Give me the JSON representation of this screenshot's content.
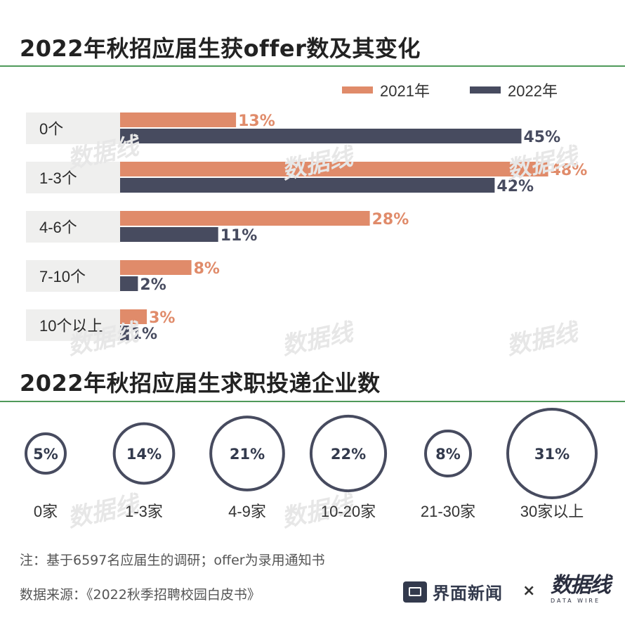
{
  "section1_title": "2022年秋招应届生获offer数及其变化",
  "section2_title": "2022年秋招应届生求职投递企业数",
  "colors": {
    "y2021": "#e08b6a",
    "y2022": "#474b5f",
    "rule": "#4f9a5a",
    "label_bg": "#efefee"
  },
  "chart_data": [
    {
      "type": "bar",
      "categories": [
        "0个",
        "1-3个",
        "4-6个",
        "7-10个",
        "10个以上"
      ],
      "series": [
        {
          "name": "2021年",
          "values": [
            13,
            48,
            28,
            8,
            3
          ],
          "labels": [
            "13%",
            "48%",
            "28%",
            "8%",
            "3%"
          ]
        },
        {
          "name": "2022年",
          "values": [
            45,
            42,
            11,
            2,
            1
          ],
          "labels": [
            "45%",
            "42%",
            "11%",
            "2%",
            "1%"
          ]
        }
      ],
      "legend": "top-right"
    },
    {
      "type": "bubble",
      "categories": [
        "0家",
        "1-3家",
        "4-9家",
        "10-20家",
        "21-30家",
        "30家以上"
      ],
      "values": [
        5,
        14,
        21,
        22,
        8,
        31
      ],
      "labels": [
        "5%",
        "14%",
        "21%",
        "22%",
        "8%",
        "31%"
      ]
    }
  ],
  "note": "注：基于6597名应届生的调研；offer为录用通知书",
  "source": "数据来源：《2022秋季招聘校园白皮书》",
  "brand": {
    "jiemian": "界面新闻",
    "times": "×",
    "datawire_main": "数据线",
    "datawire_sub": "DATA WIRE"
  },
  "watermark": "数据线"
}
